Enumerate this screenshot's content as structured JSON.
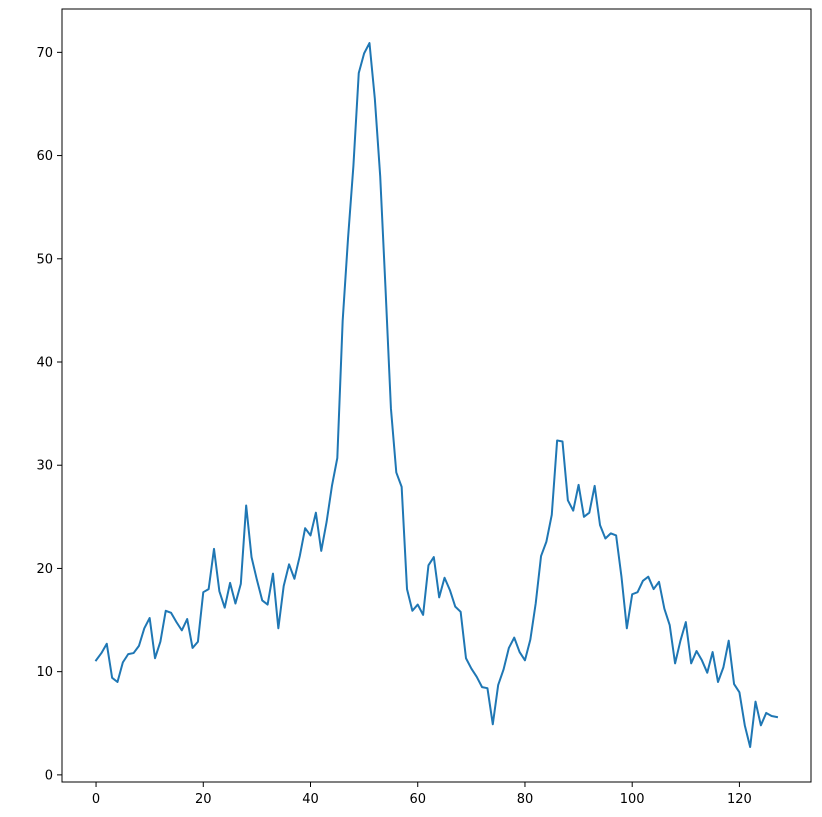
{
  "chart_data": {
    "type": "line",
    "title": "",
    "xlabel": "",
    "ylabel": "",
    "xlim": [
      -6.35,
      133.35
    ],
    "ylim": [
      -0.69,
      74.2
    ],
    "x_ticks": [
      0,
      20,
      40,
      60,
      80,
      100,
      120
    ],
    "y_ticks": [
      0,
      10,
      20,
      30,
      40,
      50,
      60,
      70
    ],
    "grid": false,
    "legend": "none",
    "series": [
      {
        "color": "#1f77b4",
        "x": [
          0,
          1,
          2,
          3,
          4,
          5,
          6,
          7,
          8,
          9,
          10,
          11,
          12,
          13,
          14,
          15,
          16,
          17,
          18,
          19,
          20,
          21,
          22,
          23,
          24,
          25,
          26,
          27,
          28,
          29,
          30,
          31,
          32,
          33,
          34,
          35,
          36,
          37,
          38,
          39,
          40,
          41,
          42,
          43,
          44,
          45,
          46,
          47,
          48,
          49,
          50,
          51,
          52,
          53,
          54,
          55,
          56,
          57,
          58,
          59,
          60,
          61,
          62,
          63,
          64,
          65,
          66,
          67,
          68,
          69,
          70,
          71,
          72,
          73,
          74,
          75,
          76,
          77,
          78,
          79,
          80,
          81,
          82,
          83,
          84,
          85,
          86,
          87,
          88,
          89,
          90,
          91,
          92,
          93,
          94,
          95,
          96,
          97,
          98,
          99,
          100,
          101,
          102,
          103,
          104,
          105,
          106,
          107,
          108,
          109,
          110,
          111,
          112,
          113,
          114,
          115,
          116,
          117,
          118,
          119,
          120,
          121,
          122,
          123,
          124,
          125,
          126,
          127
        ],
        "y": [
          11.1,
          11.8,
          12.7,
          9.4,
          9.0,
          10.9,
          11.7,
          11.8,
          12.5,
          14.2,
          15.2,
          11.3,
          12.9,
          15.9,
          15.7,
          14.8,
          14.0,
          15.1,
          12.3,
          12.9,
          17.7,
          18.0,
          21.9,
          17.8,
          16.2,
          18.6,
          16.6,
          18.5,
          26.1,
          21.1,
          18.9,
          16.9,
          16.5,
          19.5,
          14.2,
          18.3,
          20.4,
          19.0,
          21.2,
          23.9,
          23.2,
          25.4,
          21.7,
          24.5,
          28.0,
          30.7,
          44.0,
          52.0,
          59.0,
          68.0,
          69.9,
          70.9,
          65.5,
          58.0,
          47.0,
          35.5,
          29.3,
          27.9,
          18.0,
          15.9,
          16.5,
          15.5,
          20.3,
          21.1,
          17.2,
          19.1,
          17.9,
          16.3,
          15.8,
          11.3,
          10.3,
          9.5,
          8.5,
          8.4,
          4.9,
          8.7,
          10.2,
          12.3,
          13.3,
          11.9,
          11.1,
          13.1,
          16.6,
          21.2,
          22.6,
          25.2,
          32.4,
          32.3,
          26.6,
          25.6,
          28.1,
          25.0,
          25.4,
          28.0,
          24.2,
          22.9,
          23.4,
          23.2,
          19.2,
          14.2,
          17.5,
          17.7,
          18.8,
          19.2,
          18.0,
          18.7,
          16.1,
          14.5,
          10.8,
          13.0,
          14.8,
          10.8,
          12.0,
          11.1,
          9.9,
          11.9,
          9.0,
          10.4,
          13.0,
          8.8,
          8.0,
          4.8,
          2.7,
          7.1,
          4.8,
          6.0,
          5.7,
          5.6
        ]
      }
    ]
  }
}
